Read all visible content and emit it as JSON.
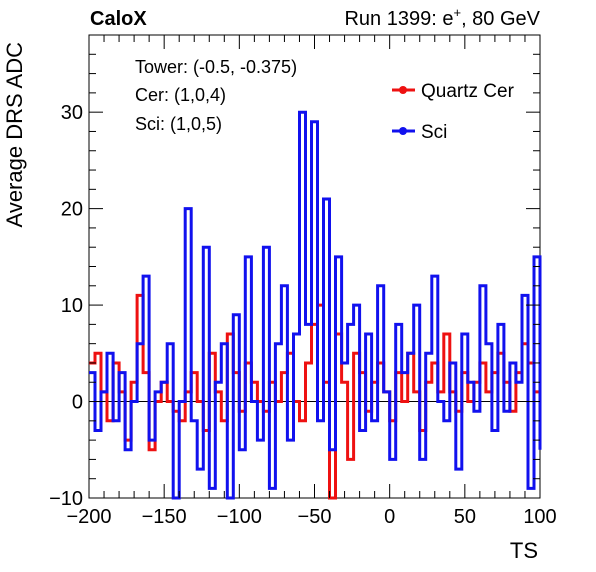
{
  "header": {
    "experiment": "CaloX",
    "run_prefix": "Run 1399: e",
    "run_charge": "+",
    "run_suffix": ", 80 GeV"
  },
  "info": {
    "tower": "Tower: (-0.5, -0.375)",
    "cer": "Cer: (1,0,4)",
    "sci": "Sci: (1,0,5)"
  },
  "chart_data": {
    "type": "line",
    "style": "step",
    "xlabel": "TS",
    "ylabel": "Average DRS ADC",
    "xlim": [
      -200,
      100
    ],
    "ylim": [
      -10,
      38
    ],
    "x_ticks": [
      -200,
      -150,
      -100,
      -50,
      0,
      50,
      100
    ],
    "y_ticks": [
      -10,
      0,
      10,
      20,
      30
    ],
    "zero_line": true,
    "grid": false,
    "legend_position": "top-right",
    "x": [
      -200,
      -196,
      -192,
      -188,
      -184,
      -180,
      -176,
      -172,
      -168,
      -164,
      -160,
      -156,
      -152,
      -148,
      -144,
      -140,
      -136,
      -132,
      -128,
      -124,
      -120,
      -116,
      -112,
      -108,
      -104,
      -100,
      -96,
      -92,
      -88,
      -84,
      -80,
      -76,
      -72,
      -68,
      -64,
      -60,
      -56,
      -52,
      -48,
      -44,
      -40,
      -36,
      -32,
      -28,
      -24,
      -20,
      -16,
      -12,
      -8,
      -4,
      0,
      4,
      8,
      12,
      16,
      20,
      24,
      28,
      32,
      36,
      40,
      44,
      48,
      52,
      56,
      60,
      64,
      68,
      72,
      76,
      80,
      84,
      88,
      92,
      96,
      100
    ],
    "series": [
      {
        "name": "Quartz Cer",
        "color": "#ee1111",
        "values": [
          4,
          5,
          1,
          -2,
          4,
          1,
          -4,
          2,
          11,
          3,
          -5,
          0,
          2,
          0,
          -1,
          -2,
          1,
          3,
          0,
          -3,
          5,
          1,
          -2,
          7,
          3,
          -1,
          4,
          2,
          0,
          -1,
          2,
          0,
          3,
          5,
          0,
          -2,
          4,
          8,
          10,
          2,
          -10,
          7,
          2,
          -6,
          5,
          3,
          -1,
          2,
          4,
          1,
          -2,
          3,
          0,
          5,
          1,
          -3,
          2,
          4,
          1,
          7,
          1,
          -1,
          3,
          0,
          2,
          4,
          1,
          3,
          5,
          2,
          -1,
          3,
          6,
          4,
          1,
          -2
        ]
      },
      {
        "name": "Sci",
        "color": "#1111ee",
        "values": [
          3,
          -3,
          1,
          5,
          -2,
          3,
          -5,
          0,
          6,
          13,
          -4,
          1,
          2,
          6,
          -10,
          0,
          20,
          -2,
          -7,
          16,
          -9,
          2,
          6,
          -10,
          9,
          -5,
          15,
          0,
          -4,
          16,
          -9,
          6,
          12,
          -4,
          7,
          30,
          8,
          29,
          -2,
          21,
          -5,
          15,
          4,
          8,
          10,
          -3,
          7,
          -2,
          12,
          1,
          -6,
          8,
          3,
          5,
          10,
          -6,
          5,
          13,
          0,
          -2,
          4,
          -7,
          7,
          2,
          -1,
          12,
          6,
          -3,
          8,
          -1,
          4,
          2,
          11,
          -9,
          15,
          -5
        ]
      }
    ]
  }
}
